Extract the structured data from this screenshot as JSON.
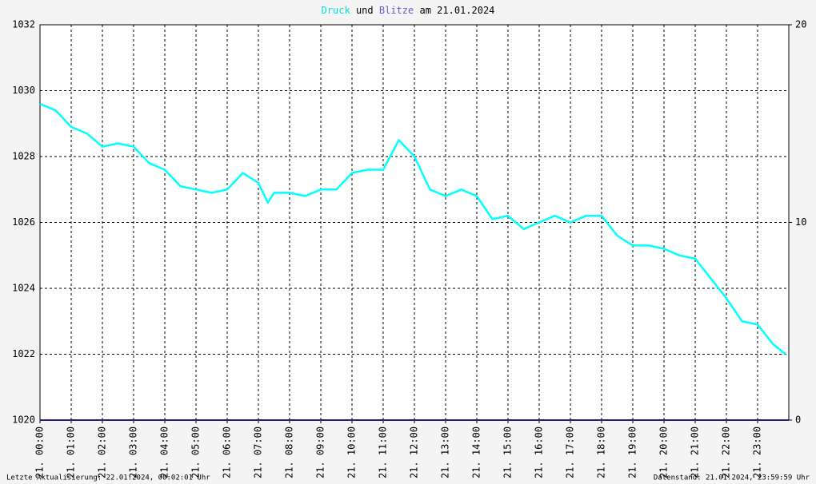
{
  "chart_data": {
    "type": "line",
    "title": {
      "parts": [
        "und",
        "am 21.01.2024"
      ]
    },
    "series": [
      {
        "name": "Druck",
        "color": "#00ffff",
        "axis": "y",
        "x": [
          0,
          0.5,
          1,
          1.5,
          2,
          2.5,
          3,
          3.5,
          4,
          4.5,
          5,
          5.5,
          6,
          6.5,
          7,
          7.3,
          7.5,
          8,
          8.5,
          9,
          9.5,
          10,
          10.5,
          11,
          11.5,
          12,
          12.5,
          13,
          13.5,
          14,
          14.5,
          15,
          15.5,
          16,
          16.5,
          17,
          17.5,
          18,
          18.5,
          19,
          19.5,
          20,
          20.5,
          21,
          21.5,
          22,
          22.5,
          23,
          23.5,
          23.9
        ],
        "values": [
          1029.6,
          1029.4,
          1028.9,
          1028.7,
          1028.3,
          1028.4,
          1028.3,
          1027.8,
          1027.6,
          1027.1,
          1027.0,
          1026.9,
          1027.0,
          1027.5,
          1027.2,
          1026.6,
          1026.9,
          1026.9,
          1026.8,
          1027.0,
          1027.0,
          1027.5,
          1027.6,
          1027.6,
          1028.5,
          1028.0,
          1027.0,
          1026.8,
          1027.0,
          1026.8,
          1026.1,
          1026.2,
          1025.8,
          1026.0,
          1026.2,
          1026.0,
          1026.2,
          1026.2,
          1025.6,
          1025.3,
          1025.3,
          1025.2,
          1025.0,
          1024.9,
          1024.3,
          1023.7,
          1023.0,
          1022.9,
          1022.3,
          1022.0
        ]
      },
      {
        "name": "Blitze",
        "color": "#2b1a7a",
        "axis": "y2",
        "x": [
          0,
          24
        ],
        "values": [
          0,
          0
        ]
      }
    ],
    "xlim": [
      0,
      24
    ],
    "xticks": [
      {
        "value": 0,
        "label": "21. 00:00"
      },
      {
        "value": 1,
        "label": "21. 01:00"
      },
      {
        "value": 2,
        "label": "21. 02:00"
      },
      {
        "value": 3,
        "label": "21. 03:00"
      },
      {
        "value": 4,
        "label": "21. 04:00"
      },
      {
        "value": 5,
        "label": "21. 05:00"
      },
      {
        "value": 6,
        "label": "21. 06:00"
      },
      {
        "value": 7,
        "label": "21. 07:00"
      },
      {
        "value": 8,
        "label": "21. 08:00"
      },
      {
        "value": 9,
        "label": "21. 09:00"
      },
      {
        "value": 10,
        "label": "21. 10:00"
      },
      {
        "value": 11,
        "label": "21. 11:00"
      },
      {
        "value": 12,
        "label": "21. 12:00"
      },
      {
        "value": 13,
        "label": "21. 13:00"
      },
      {
        "value": 14,
        "label": "21. 14:00"
      },
      {
        "value": 15,
        "label": "21. 15:00"
      },
      {
        "value": 16,
        "label": "21. 16:00"
      },
      {
        "value": 17,
        "label": "21. 17:00"
      },
      {
        "value": 18,
        "label": "21. 18:00"
      },
      {
        "value": 19,
        "label": "21. 19:00"
      },
      {
        "value": 20,
        "label": "21. 20:00"
      },
      {
        "value": 21,
        "label": "21. 21:00"
      },
      {
        "value": 22,
        "label": "21. 22:00"
      },
      {
        "value": 23,
        "label": "21. 23:00"
      }
    ],
    "ylim": [
      1020,
      1032
    ],
    "yticks": [
      1020,
      1022,
      1024,
      1026,
      1028,
      1030,
      1032
    ],
    "y2lim": [
      0,
      20
    ],
    "y2ticks": [
      0,
      10,
      20
    ],
    "grid": true,
    "footer_left": "Letzte Aktualisierung: 22.01.2024, 00:02:01 Uhr",
    "footer_right": "Datenstand: 21.01.2024, 23:59:59 Uhr"
  }
}
